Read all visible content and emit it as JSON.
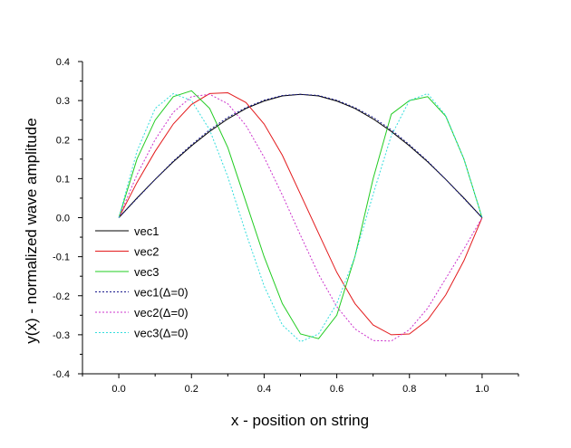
{
  "chart_data": {
    "type": "line",
    "title": "",
    "xlabel": "x - position on string",
    "ylabel": "y(x) - normalized wave amplitude",
    "xlim": [
      -0.1,
      1.1
    ],
    "ylim": [
      -0.4,
      0.4
    ],
    "x_ticks": [
      0.0,
      0.2,
      0.4,
      0.6,
      0.8,
      1.0
    ],
    "x_tick_labels": [
      "0.0",
      "0.2",
      "0.4",
      "0.6",
      "0.8",
      "1.0"
    ],
    "y_ticks": [
      -0.4,
      -0.3,
      -0.2,
      -0.1,
      0.0,
      0.1,
      0.2,
      0.3,
      0.4
    ],
    "y_tick_labels": [
      "-0.4",
      "-0.3",
      "-0.2",
      "-0.1",
      "0.0",
      "0.1",
      "0.2",
      "0.3",
      "0.4"
    ],
    "grid": false,
    "legend_position": "bottom-left",
    "x": [
      0.0,
      0.05,
      0.1,
      0.15,
      0.2,
      0.25,
      0.3,
      0.35,
      0.4,
      0.45,
      0.5,
      0.55,
      0.6,
      0.65,
      0.7,
      0.75,
      0.8,
      0.85,
      0.9,
      0.95,
      1.0
    ],
    "series": [
      {
        "name": "vec1",
        "color": "#000000",
        "dash": "solid",
        "values": [
          0.0,
          0.05,
          0.098,
          0.143,
          0.184,
          0.221,
          0.253,
          0.28,
          0.299,
          0.312,
          0.316,
          0.312,
          0.299,
          0.28,
          0.253,
          0.221,
          0.184,
          0.143,
          0.098,
          0.05,
          0.0
        ]
      },
      {
        "name": "vec2",
        "color": "#e31a1c",
        "dash": "solid",
        "values": [
          0.0,
          0.09,
          0.17,
          0.24,
          0.29,
          0.318,
          0.32,
          0.295,
          0.24,
          0.16,
          0.06,
          -0.04,
          -0.14,
          -0.22,
          -0.275,
          -0.3,
          -0.298,
          -0.262,
          -0.198,
          -0.11,
          0.0
        ]
      },
      {
        "name": "vec3",
        "color": "#22cc22",
        "dash": "solid",
        "values": [
          0.0,
          0.15,
          0.25,
          0.31,
          0.325,
          0.28,
          0.18,
          0.04,
          -0.1,
          -0.22,
          -0.298,
          -0.31,
          -0.25,
          -0.1,
          0.1,
          0.265,
          0.3,
          0.31,
          0.26,
          0.15,
          0.0
        ]
      },
      {
        "name": "vec1(Δ=0)",
        "color": "#1a1a8c",
        "dash": "dot",
        "values": [
          0.0,
          0.049,
          0.098,
          0.145,
          0.187,
          0.225,
          0.257,
          0.282,
          0.301,
          0.313,
          0.316,
          0.313,
          0.301,
          0.282,
          0.257,
          0.225,
          0.187,
          0.145,
          0.098,
          0.049,
          0.0
        ]
      },
      {
        "name": "vec2(Δ=0)",
        "color": "#cc33cc",
        "dash": "dot",
        "values": [
          0.0,
          0.11,
          0.2,
          0.27,
          0.31,
          0.316,
          0.292,
          0.236,
          0.155,
          0.058,
          -0.045,
          -0.145,
          -0.228,
          -0.285,
          -0.315,
          -0.316,
          -0.287,
          -0.232,
          -0.156,
          -0.08,
          0.0
        ]
      },
      {
        "name": "vec3(Δ=0)",
        "color": "#33dddd",
        "dash": "dot",
        "values": [
          0.0,
          0.17,
          0.28,
          0.318,
          0.3,
          0.225,
          0.105,
          -0.04,
          -0.175,
          -0.275,
          -0.318,
          -0.298,
          -0.22,
          -0.1,
          0.06,
          0.21,
          0.3,
          0.318,
          0.262,
          0.15,
          0.0
        ]
      }
    ]
  }
}
